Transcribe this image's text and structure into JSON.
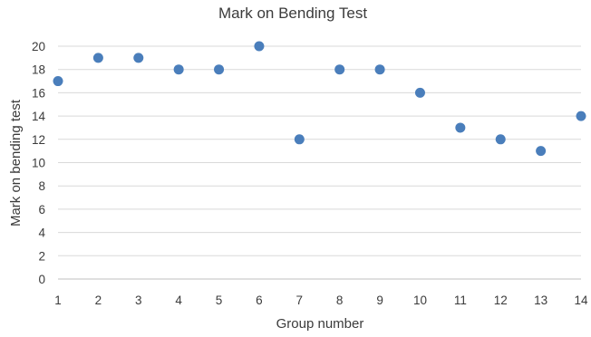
{
  "chart_data": {
    "type": "scatter",
    "title": "Mark on Bending Test",
    "xlabel": "Group number",
    "ylabel": "Mark on bending test",
    "xlim": [
      1,
      14
    ],
    "ylim": [
      0,
      20
    ],
    "x_ticks": [
      1,
      2,
      3,
      4,
      5,
      6,
      7,
      8,
      9,
      10,
      11,
      12,
      13,
      14
    ],
    "y_ticks": [
      0,
      2,
      4,
      6,
      8,
      10,
      12,
      14,
      16,
      18,
      20
    ],
    "grid": true,
    "legend": false,
    "marker_color": "#4a7ebb",
    "x": [
      1,
      2,
      3,
      4,
      5,
      6,
      7,
      8,
      9,
      10,
      11,
      12,
      13,
      14
    ],
    "y": [
      17,
      19,
      19,
      18,
      18,
      20,
      12,
      18,
      18,
      16,
      13,
      12,
      11,
      14
    ]
  }
}
